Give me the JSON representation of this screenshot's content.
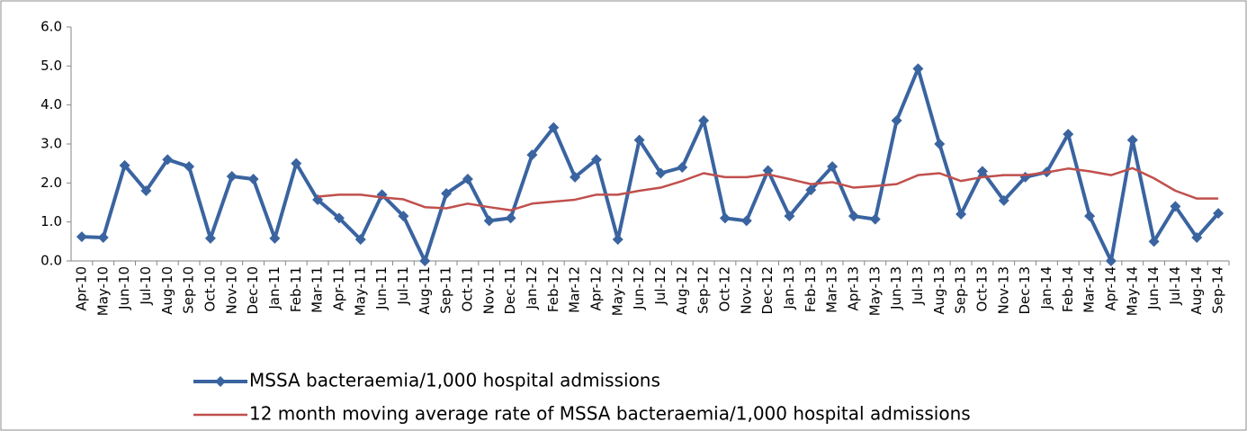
{
  "chart_data": {
    "type": "line",
    "categories": [
      "Apr-10",
      "May-10",
      "Jun-10",
      "Jul-10",
      "Aug-10",
      "Sep-10",
      "Oct-10",
      "Nov-10",
      "Dec-10",
      "Jan-11",
      "Feb-11",
      "Mar-11",
      "Apr-11",
      "May-11",
      "Jun-11",
      "Jul-11",
      "Aug-11",
      "Sep-11",
      "Oct-11",
      "Nov-11",
      "Dec-11",
      "Jan-12",
      "Feb-12",
      "Mar-12",
      "Apr-12",
      "May-12",
      "Jun-12",
      "Jul-12",
      "Aug-12",
      "Sep-12",
      "Oct-12",
      "Nov-12",
      "Dec-12",
      "Jan-13",
      "Feb-13",
      "Mar-13",
      "Apr-13",
      "May-13",
      "Jun-13",
      "Jul-13",
      "Aug-13",
      "Sep-13",
      "Oct-13",
      "Nov-13",
      "Dec-13",
      "Jan-14",
      "Feb-14",
      "Mar-14",
      "Apr-14",
      "May-14",
      "Jun-14",
      "Jul-14",
      "Aug-14",
      "Sep-14"
    ],
    "series": [
      {
        "name": "MSSA bacteraemia/1,000 hospital admissions",
        "color": "#3a64a0",
        "marker": "diamond",
        "values": [
          0.62,
          0.6,
          2.45,
          1.8,
          2.6,
          2.42,
          0.58,
          2.17,
          2.1,
          0.58,
          2.5,
          1.57,
          1.1,
          0.55,
          1.7,
          1.15,
          0.0,
          1.73,
          2.1,
          1.03,
          1.1,
          2.72,
          3.42,
          2.15,
          2.6,
          0.55,
          3.1,
          2.25,
          2.4,
          3.6,
          1.1,
          1.03,
          2.32,
          1.15,
          1.82,
          2.42,
          1.15,
          1.07,
          3.6,
          4.93,
          3.0,
          1.2,
          2.3,
          1.55,
          2.15,
          2.28,
          3.25,
          1.15,
          0.0,
          3.1,
          0.5,
          1.4,
          0.6,
          1.22
        ]
      },
      {
        "name": "12 month moving average rate of MSSA bacteraemia/1,000 hospital admissions",
        "color": "#c0504d",
        "marker": "none",
        "values": [
          null,
          null,
          null,
          null,
          null,
          null,
          null,
          null,
          null,
          null,
          null,
          1.65,
          1.7,
          1.7,
          1.63,
          1.58,
          1.38,
          1.35,
          1.47,
          1.38,
          1.3,
          1.47,
          1.52,
          1.57,
          1.7,
          1.7,
          1.8,
          1.88,
          2.05,
          2.25,
          2.15,
          2.15,
          2.22,
          2.1,
          1.97,
          2.02,
          1.88,
          1.92,
          1.97,
          2.2,
          2.25,
          2.05,
          2.15,
          2.2,
          2.2,
          2.27,
          2.37,
          2.3,
          2.2,
          2.38,
          2.12,
          1.8,
          1.6,
          1.6
        ]
      }
    ],
    "ylim": [
      0,
      6
    ],
    "yticks": [
      {
        "value": 0,
        "label": "0.0"
      },
      {
        "value": 1,
        "label": "1.0"
      },
      {
        "value": 2,
        "label": "2.0"
      },
      {
        "value": 3,
        "label": "3.0"
      },
      {
        "value": 4,
        "label": "4.0"
      },
      {
        "value": 5,
        "label": "5.0"
      },
      {
        "value": 6,
        "label": "6.0"
      }
    ],
    "grid": false,
    "legend": "bottom"
  }
}
